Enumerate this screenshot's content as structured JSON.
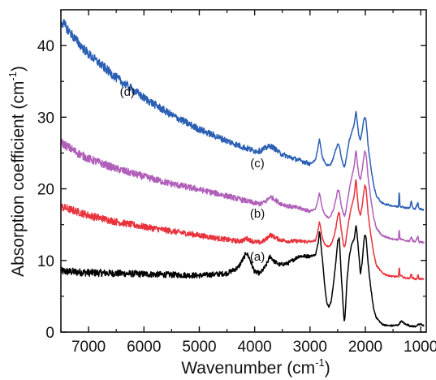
{
  "chart_data": {
    "type": "line",
    "title": "",
    "xlabel": "Wavenumber (cm",
    "xlabel_sup": "-1",
    "xlabel_end": ")",
    "ylabel": "Absorption coefficient (cm",
    "ylabel_sup": "-1",
    "ylabel_end": ")",
    "xlim": [
      7500,
      900
    ],
    "ylim": [
      0,
      45
    ],
    "x_reversed": true,
    "xticks": [
      7000,
      6000,
      5000,
      4000,
      3000,
      2000,
      1000
    ],
    "xtick_labels": [
      "7000",
      "6000",
      "5000",
      "4000",
      "3000",
      "2000",
      "1000"
    ],
    "yticks": [
      0,
      10,
      20,
      30,
      40
    ],
    "ytick_labels": [
      "0",
      "10",
      "20",
      "30",
      "40"
    ],
    "grid": false,
    "series": [
      {
        "name": "(a)",
        "color": "#000000",
        "noise": 0.55,
        "label_at": [
          3950,
          10.0
        ],
        "points": [
          [
            7500,
            8.5
          ],
          [
            7000,
            8.3
          ],
          [
            6500,
            8.2
          ],
          [
            6000,
            8.1
          ],
          [
            5500,
            8.0
          ],
          [
            5000,
            7.9
          ],
          [
            4500,
            8.2
          ],
          [
            4300,
            9.0
          ],
          [
            4200,
            10.3
          ],
          [
            4150,
            11.1
          ],
          [
            4100,
            10.4
          ],
          [
            4000,
            8.4
          ],
          [
            3900,
            8.2
          ],
          [
            3800,
            9.2
          ],
          [
            3720,
            10.6
          ],
          [
            3650,
            9.9
          ],
          [
            3550,
            9.4
          ],
          [
            3400,
            9.6
          ],
          [
            3200,
            10.6
          ],
          [
            3000,
            10.6
          ],
          [
            2900,
            10.8
          ],
          [
            2850,
            12.5
          ],
          [
            2830,
            14.3
          ],
          [
            2810,
            13.0
          ],
          [
            2780,
            10.5
          ],
          [
            2740,
            7.0
          ],
          [
            2700,
            4.2
          ],
          [
            2660,
            3.5
          ],
          [
            2620,
            4.2
          ],
          [
            2580,
            6.5
          ],
          [
            2530,
            10.0
          ],
          [
            2500,
            12.7
          ],
          [
            2470,
            13.2
          ],
          [
            2440,
            8.5
          ],
          [
            2400,
            3.5
          ],
          [
            2380,
            1.3
          ],
          [
            2360,
            3.0
          ],
          [
            2330,
            7.5
          ],
          [
            2290,
            10.5
          ],
          [
            2250,
            12.3
          ],
          [
            2200,
            13.0
          ],
          [
            2170,
            15.0
          ],
          [
            2150,
            13.8
          ],
          [
            2120,
            11.0
          ],
          [
            2090,
            8.0
          ],
          [
            2060,
            9.5
          ],
          [
            2030,
            12.5
          ],
          [
            2010,
            13.6
          ],
          [
            1990,
            13.3
          ],
          [
            1970,
            11.5
          ],
          [
            1950,
            9.5
          ],
          [
            1900,
            6.0
          ],
          [
            1850,
            3.2
          ],
          [
            1800,
            2.0
          ],
          [
            1700,
            1.1
          ],
          [
            1600,
            0.9
          ],
          [
            1500,
            0.9
          ],
          [
            1400,
            1.0
          ],
          [
            1370,
            1.4
          ],
          [
            1340,
            1.5
          ],
          [
            1300,
            1.2
          ],
          [
            1200,
            0.9
          ],
          [
            1150,
            0.8
          ],
          [
            1100,
            0.8
          ],
          [
            1050,
            1.0
          ],
          [
            1000,
            1.1
          ],
          [
            940,
            0.9
          ]
        ]
      },
      {
        "name": "(b)",
        "color": "#e8323c",
        "noise": 0.55,
        "label_at": [
          3950,
          16.0
        ],
        "points": [
          [
            7500,
            17.5
          ],
          [
            7200,
            16.8
          ],
          [
            7000,
            16.3
          ],
          [
            6500,
            15.4
          ],
          [
            6000,
            14.7
          ],
          [
            5500,
            14.1
          ],
          [
            5000,
            13.5
          ],
          [
            4500,
            12.9
          ],
          [
            4300,
            12.7
          ],
          [
            4200,
            12.8
          ],
          [
            4150,
            13.1
          ],
          [
            4100,
            12.9
          ],
          [
            4000,
            12.6
          ],
          [
            3900,
            12.5
          ],
          [
            3800,
            12.9
          ],
          [
            3720,
            13.6
          ],
          [
            3650,
            13.3
          ],
          [
            3550,
            12.9
          ],
          [
            3400,
            12.7
          ],
          [
            3200,
            12.7
          ],
          [
            3000,
            12.6
          ],
          [
            2900,
            12.8
          ],
          [
            2850,
            14.3
          ],
          [
            2830,
            15.5
          ],
          [
            2810,
            14.7
          ],
          [
            2780,
            13.2
          ],
          [
            2740,
            12.4
          ],
          [
            2700,
            12.0
          ],
          [
            2660,
            12.0
          ],
          [
            2620,
            12.2
          ],
          [
            2580,
            13.0
          ],
          [
            2530,
            14.6
          ],
          [
            2500,
            16.3
          ],
          [
            2470,
            16.8
          ],
          [
            2440,
            14.5
          ],
          [
            2400,
            12.5
          ],
          [
            2380,
            11.8
          ],
          [
            2360,
            12.3
          ],
          [
            2330,
            14.0
          ],
          [
            2290,
            16.0
          ],
          [
            2250,
            17.5
          ],
          [
            2200,
            19.0
          ],
          [
            2170,
            21.5
          ],
          [
            2150,
            19.5
          ],
          [
            2120,
            17.0
          ],
          [
            2090,
            16.3
          ],
          [
            2060,
            17.5
          ],
          [
            2030,
            19.5
          ],
          [
            2010,
            20.5
          ],
          [
            1990,
            20.2
          ],
          [
            1970,
            18.5
          ],
          [
            1950,
            16.5
          ],
          [
            1900,
            13.5
          ],
          [
            1850,
            11.0
          ],
          [
            1800,
            9.3
          ],
          [
            1700,
            8.3
          ],
          [
            1600,
            7.9
          ],
          [
            1500,
            7.8
          ],
          [
            1420,
            7.7
          ],
          [
            1400,
            7.7
          ],
          [
            1390,
            9.3
          ],
          [
            1375,
            7.9
          ],
          [
            1300,
            7.6
          ],
          [
            1200,
            7.5
          ],
          [
            1170,
            8.1
          ],
          [
            1150,
            7.6
          ],
          [
            1100,
            7.4
          ],
          [
            1070,
            7.4
          ],
          [
            1050,
            8.1
          ],
          [
            1030,
            7.4
          ],
          [
            940,
            7.4
          ]
        ]
      },
      {
        "name": "(c)",
        "color": "#b05fb9",
        "noise": 0.6,
        "label_at": [
          3950,
          23.0
        ],
        "points": [
          [
            7500,
            26.5
          ],
          [
            7200,
            25.0
          ],
          [
            7000,
            24.2
          ],
          [
            6500,
            22.8
          ],
          [
            6000,
            21.7
          ],
          [
            5500,
            20.7
          ],
          [
            5000,
            19.9
          ],
          [
            4500,
            19.0
          ],
          [
            4200,
            18.4
          ],
          [
            4000,
            18.0
          ],
          [
            3900,
            17.9
          ],
          [
            3800,
            18.2
          ],
          [
            3720,
            18.9
          ],
          [
            3650,
            18.6
          ],
          [
            3550,
            18.0
          ],
          [
            3400,
            17.6
          ],
          [
            3200,
            17.3
          ],
          [
            3000,
            16.9
          ],
          [
            2900,
            17.2
          ],
          [
            2850,
            18.6
          ],
          [
            2830,
            19.5
          ],
          [
            2810,
            18.7
          ],
          [
            2780,
            17.3
          ],
          [
            2740,
            16.5
          ],
          [
            2700,
            16.1
          ],
          [
            2660,
            16.0
          ],
          [
            2620,
            16.3
          ],
          [
            2580,
            17.0
          ],
          [
            2530,
            18.6
          ],
          [
            2500,
            19.8
          ],
          [
            2470,
            19.6
          ],
          [
            2440,
            17.8
          ],
          [
            2400,
            16.6
          ],
          [
            2380,
            16.2
          ],
          [
            2360,
            16.6
          ],
          [
            2330,
            18.0
          ],
          [
            2290,
            20.0
          ],
          [
            2250,
            21.5
          ],
          [
            2200,
            23.3
          ],
          [
            2170,
            25.5
          ],
          [
            2150,
            24.0
          ],
          [
            2120,
            22.0
          ],
          [
            2090,
            21.2
          ],
          [
            2060,
            22.5
          ],
          [
            2030,
            24.3
          ],
          [
            2010,
            25.3
          ],
          [
            1990,
            25.0
          ],
          [
            1970,
            23.5
          ],
          [
            1950,
            21.5
          ],
          [
            1900,
            18.5
          ],
          [
            1850,
            16.0
          ],
          [
            1800,
            14.5
          ],
          [
            1700,
            13.5
          ],
          [
            1600,
            13.2
          ],
          [
            1500,
            13.0
          ],
          [
            1400,
            12.9
          ],
          [
            1390,
            14.6
          ],
          [
            1375,
            13.0
          ],
          [
            1300,
            12.8
          ],
          [
            1200,
            12.7
          ],
          [
            1170,
            13.3
          ],
          [
            1150,
            12.8
          ],
          [
            1100,
            12.6
          ],
          [
            1050,
            13.3
          ],
          [
            1030,
            12.6
          ],
          [
            940,
            12.5
          ]
        ]
      },
      {
        "name": "(d)",
        "color": "#2a5fb4",
        "noise": 0.7,
        "label_at": [
          6300,
          33.0
        ],
        "points": [
          [
            7500,
            43.5
          ],
          [
            7200,
            40.5
          ],
          [
            7000,
            38.8
          ],
          [
            6500,
            35.5
          ],
          [
            6000,
            32.7
          ],
          [
            5500,
            30.3
          ],
          [
            5000,
            28.3
          ],
          [
            4500,
            26.7
          ],
          [
            4200,
            25.8
          ],
          [
            4000,
            25.3
          ],
          [
            3900,
            25.3
          ],
          [
            3800,
            25.7
          ],
          [
            3720,
            26.0
          ],
          [
            3650,
            25.7
          ],
          [
            3550,
            25.0
          ],
          [
            3400,
            24.5
          ],
          [
            3200,
            24.0
          ],
          [
            3000,
            23.5
          ],
          [
            2900,
            24.0
          ],
          [
            2850,
            26.0
          ],
          [
            2830,
            27.0
          ],
          [
            2810,
            26.0
          ],
          [
            2780,
            24.5
          ],
          [
            2740,
            23.8
          ],
          [
            2700,
            23.3
          ],
          [
            2660,
            23.3
          ],
          [
            2620,
            23.5
          ],
          [
            2580,
            24.3
          ],
          [
            2530,
            25.6
          ],
          [
            2500,
            26.3
          ],
          [
            2470,
            26.0
          ],
          [
            2440,
            24.6
          ],
          [
            2400,
            23.4
          ],
          [
            2380,
            23.0
          ],
          [
            2360,
            23.5
          ],
          [
            2330,
            25.0
          ],
          [
            2290,
            26.8
          ],
          [
            2250,
            27.8
          ],
          [
            2200,
            29.0
          ],
          [
            2170,
            31.0
          ],
          [
            2150,
            29.5
          ],
          [
            2120,
            27.5
          ],
          [
            2090,
            26.8
          ],
          [
            2060,
            28.0
          ],
          [
            2030,
            29.5
          ],
          [
            2010,
            30.0
          ],
          [
            1990,
            29.6
          ],
          [
            1970,
            28.0
          ],
          [
            1950,
            26.0
          ],
          [
            1900,
            23.0
          ],
          [
            1850,
            20.5
          ],
          [
            1800,
            19.0
          ],
          [
            1700,
            18.0
          ],
          [
            1600,
            17.8
          ],
          [
            1500,
            17.6
          ],
          [
            1400,
            17.5
          ],
          [
            1390,
            20.0
          ],
          [
            1375,
            17.6
          ],
          [
            1300,
            17.4
          ],
          [
            1200,
            17.3
          ],
          [
            1170,
            18.3
          ],
          [
            1150,
            17.4
          ],
          [
            1100,
            17.2
          ],
          [
            1050,
            18.0
          ],
          [
            1030,
            17.2
          ],
          [
            940,
            17.1
          ]
        ]
      }
    ]
  }
}
